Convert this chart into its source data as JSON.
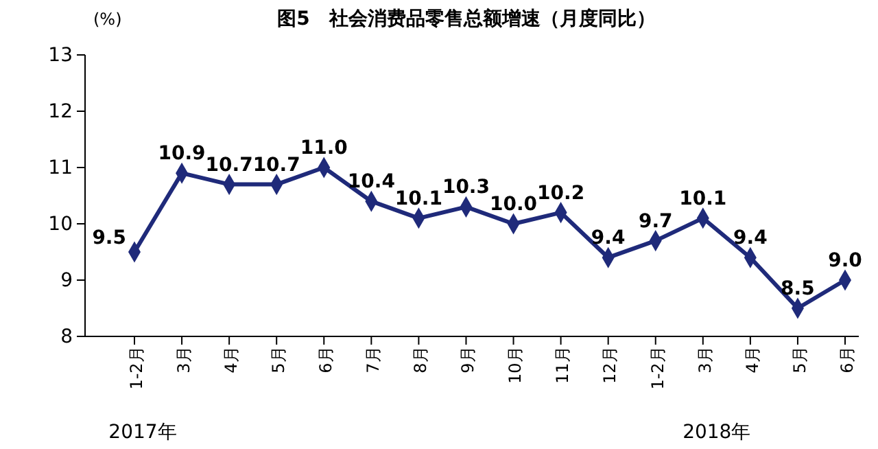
{
  "chart_data": {
    "type": "line",
    "title": "图5　社会消费品零售总额增速（月度同比）",
    "ylabel": "(%)",
    "categories": [
      "1-2月",
      "3月",
      "4月",
      "5月",
      "6月",
      "7月",
      "8月",
      "9月",
      "10月",
      "11月",
      "12月",
      "1-2月",
      "3月",
      "4月",
      "5月",
      "6月"
    ],
    "series": [
      {
        "color": "#1f2a7a",
        "values": [
          9.5,
          10.9,
          10.7,
          10.7,
          11.0,
          10.4,
          10.1,
          10.3,
          10.0,
          10.2,
          9.4,
          9.7,
          10.1,
          9.4,
          8.5,
          9.0
        ],
        "value_labels": [
          "9.5",
          "10.9",
          "10.7",
          "10.7",
          "11.0",
          "10.4",
          "10.1",
          "10.3",
          "10.0",
          "10.2",
          "9.4",
          "9.7",
          "10.1",
          "9.4",
          "8.5",
          "9.0"
        ]
      }
    ],
    "ylim": [
      8,
      13
    ],
    "yticks": [
      8,
      9,
      10,
      11,
      12,
      13
    ],
    "marker": "diamond",
    "grid": false,
    "annotations": [
      "2017年",
      "2018年"
    ]
  }
}
